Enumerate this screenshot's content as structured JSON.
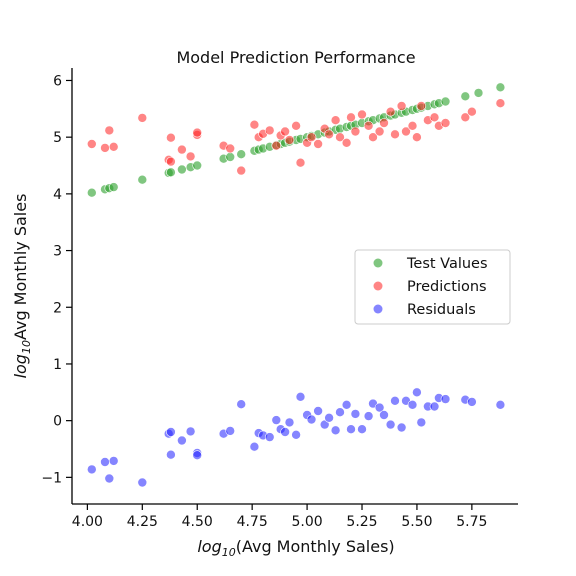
{
  "chart_data": {
    "type": "scatter",
    "title": "Model Prediction Performance",
    "xlabel_main": "log",
    "xlabel_sub": "10",
    "xlabel_rest": "(Avg Monthly Sales)",
    "ylabel_main": "log",
    "ylabel_sub": "10",
    "ylabel_rest": "Avg Monthly Sales",
    "xlim": [
      3.93,
      5.96
    ],
    "ylim": [
      -1.47,
      6.22
    ],
    "x_ticks": [
      4.0,
      4.25,
      4.5,
      4.75,
      5.0,
      5.25,
      5.5,
      5.75
    ],
    "x_tick_labels": [
      "4.00",
      "4.25",
      "4.50",
      "4.75",
      "5.00",
      "5.25",
      "5.50",
      "5.75"
    ],
    "y_ticks": [
      -1,
      0,
      1,
      2,
      3,
      4,
      5,
      6
    ],
    "y_tick_labels": [
      "−1",
      "0",
      "1",
      "2",
      "3",
      "4",
      "5",
      "6"
    ],
    "legend_position": "center-right",
    "series": [
      {
        "name": "Test Values",
        "color": "#2ca02c",
        "points": [
          [
            4.02,
            4.02
          ],
          [
            4.08,
            4.08
          ],
          [
            4.1,
            4.1
          ],
          [
            4.12,
            4.12
          ],
          [
            4.25,
            4.25
          ],
          [
            4.37,
            4.37
          ],
          [
            4.38,
            4.38
          ],
          [
            4.43,
            4.43
          ],
          [
            4.47,
            4.47
          ],
          [
            4.5,
            4.5
          ],
          [
            4.62,
            4.62
          ],
          [
            4.65,
            4.65
          ],
          [
            4.7,
            4.7
          ],
          [
            4.76,
            4.76
          ],
          [
            4.78,
            4.78
          ],
          [
            4.8,
            4.8
          ],
          [
            4.83,
            4.83
          ],
          [
            4.86,
            4.86
          ],
          [
            4.88,
            4.88
          ],
          [
            4.9,
            4.9
          ],
          [
            4.92,
            4.92
          ],
          [
            4.95,
            4.95
          ],
          [
            4.97,
            4.97
          ],
          [
            5.0,
            5.0
          ],
          [
            5.02,
            5.02
          ],
          [
            5.05,
            5.05
          ],
          [
            5.08,
            5.08
          ],
          [
            5.1,
            5.1
          ],
          [
            5.13,
            5.13
          ],
          [
            5.15,
            5.15
          ],
          [
            5.18,
            5.18
          ],
          [
            5.2,
            5.2
          ],
          [
            5.22,
            5.22
          ],
          [
            5.25,
            5.25
          ],
          [
            5.28,
            5.28
          ],
          [
            5.3,
            5.3
          ],
          [
            5.33,
            5.33
          ],
          [
            5.35,
            5.35
          ],
          [
            5.38,
            5.38
          ],
          [
            5.4,
            5.4
          ],
          [
            5.43,
            5.43
          ],
          [
            5.45,
            5.45
          ],
          [
            5.48,
            5.48
          ],
          [
            5.5,
            5.5
          ],
          [
            5.52,
            5.52
          ],
          [
            5.55,
            5.55
          ],
          [
            5.58,
            5.58
          ],
          [
            5.6,
            5.6
          ],
          [
            5.63,
            5.63
          ],
          [
            5.72,
            5.72
          ],
          [
            5.78,
            5.78
          ],
          [
            5.88,
            5.88
          ]
        ]
      },
      {
        "name": "Predictions",
        "color": "#ff2020",
        "points": [
          [
            4.02,
            4.88
          ],
          [
            4.08,
            4.81
          ],
          [
            4.1,
            5.12
          ],
          [
            4.12,
            4.83
          ],
          [
            4.25,
            5.34
          ],
          [
            4.37,
            4.6
          ],
          [
            4.38,
            4.57
          ],
          [
            4.38,
            4.99
          ],
          [
            4.43,
            4.78
          ],
          [
            4.47,
            4.66
          ],
          [
            4.5,
            5.04
          ],
          [
            4.5,
            5.08
          ],
          [
            4.62,
            4.85
          ],
          [
            4.65,
            4.8
          ],
          [
            4.7,
            4.41
          ],
          [
            4.76,
            5.22
          ],
          [
            4.78,
            5.0
          ],
          [
            4.8,
            5.06
          ],
          [
            4.83,
            5.12
          ],
          [
            4.86,
            4.85
          ],
          [
            4.88,
            5.03
          ],
          [
            4.9,
            5.1
          ],
          [
            4.92,
            4.95
          ],
          [
            4.95,
            5.2
          ],
          [
            4.97,
            4.55
          ],
          [
            5.0,
            4.9
          ],
          [
            5.02,
            5.0
          ],
          [
            5.05,
            4.88
          ],
          [
            5.08,
            5.15
          ],
          [
            5.1,
            5.05
          ],
          [
            5.13,
            5.3
          ],
          [
            5.15,
            5.0
          ],
          [
            5.18,
            4.9
          ],
          [
            5.2,
            5.35
          ],
          [
            5.22,
            5.1
          ],
          [
            5.25,
            5.4
          ],
          [
            5.28,
            5.2
          ],
          [
            5.3,
            5.0
          ],
          [
            5.33,
            5.1
          ],
          [
            5.35,
            5.25
          ],
          [
            5.38,
            5.45
          ],
          [
            5.4,
            5.05
          ],
          [
            5.43,
            5.55
          ],
          [
            5.45,
            5.1
          ],
          [
            5.48,
            5.2
          ],
          [
            5.5,
            5.0
          ],
          [
            5.52,
            5.55
          ],
          [
            5.55,
            5.3
          ],
          [
            5.58,
            5.35
          ],
          [
            5.6,
            5.2
          ],
          [
            5.63,
            5.25
          ],
          [
            5.72,
            5.35
          ],
          [
            5.75,
            5.45
          ],
          [
            5.88,
            5.6
          ]
        ]
      },
      {
        "name": "Residuals",
        "color": "#2020ff",
        "points": [
          [
            4.02,
            -0.86
          ],
          [
            4.08,
            -0.73
          ],
          [
            4.1,
            -1.02
          ],
          [
            4.12,
            -0.71
          ],
          [
            4.25,
            -1.09
          ],
          [
            4.37,
            -0.23
          ],
          [
            4.38,
            -0.2
          ],
          [
            4.38,
            -0.6
          ],
          [
            4.43,
            -0.35
          ],
          [
            4.47,
            -0.19
          ],
          [
            4.5,
            -0.57
          ],
          [
            4.5,
            -0.61
          ],
          [
            4.62,
            -0.23
          ],
          [
            4.65,
            -0.18
          ],
          [
            4.7,
            0.29
          ],
          [
            4.76,
            -0.46
          ],
          [
            4.78,
            -0.22
          ],
          [
            4.8,
            -0.26
          ],
          [
            4.83,
            -0.29
          ],
          [
            4.86,
            0.01
          ],
          [
            4.88,
            -0.15
          ],
          [
            4.9,
            -0.2
          ],
          [
            4.92,
            -0.03
          ],
          [
            4.95,
            -0.25
          ],
          [
            4.97,
            0.42
          ],
          [
            5.0,
            0.1
          ],
          [
            5.02,
            0.02
          ],
          [
            5.05,
            0.17
          ],
          [
            5.08,
            -0.07
          ],
          [
            5.1,
            0.05
          ],
          [
            5.13,
            -0.17
          ],
          [
            5.15,
            0.15
          ],
          [
            5.18,
            0.28
          ],
          [
            5.2,
            -0.15
          ],
          [
            5.22,
            0.12
          ],
          [
            5.25,
            -0.15
          ],
          [
            5.28,
            0.08
          ],
          [
            5.3,
            0.3
          ],
          [
            5.33,
            0.23
          ],
          [
            5.35,
            0.1
          ],
          [
            5.38,
            -0.07
          ],
          [
            5.4,
            0.35
          ],
          [
            5.43,
            -0.12
          ],
          [
            5.45,
            0.35
          ],
          [
            5.48,
            0.28
          ],
          [
            5.5,
            0.5
          ],
          [
            5.52,
            -0.03
          ],
          [
            5.55,
            0.25
          ],
          [
            5.58,
            0.25
          ],
          [
            5.6,
            0.4
          ],
          [
            5.63,
            0.38
          ],
          [
            5.72,
            0.37
          ],
          [
            5.75,
            0.33
          ],
          [
            5.88,
            0.28
          ]
        ]
      }
    ]
  }
}
